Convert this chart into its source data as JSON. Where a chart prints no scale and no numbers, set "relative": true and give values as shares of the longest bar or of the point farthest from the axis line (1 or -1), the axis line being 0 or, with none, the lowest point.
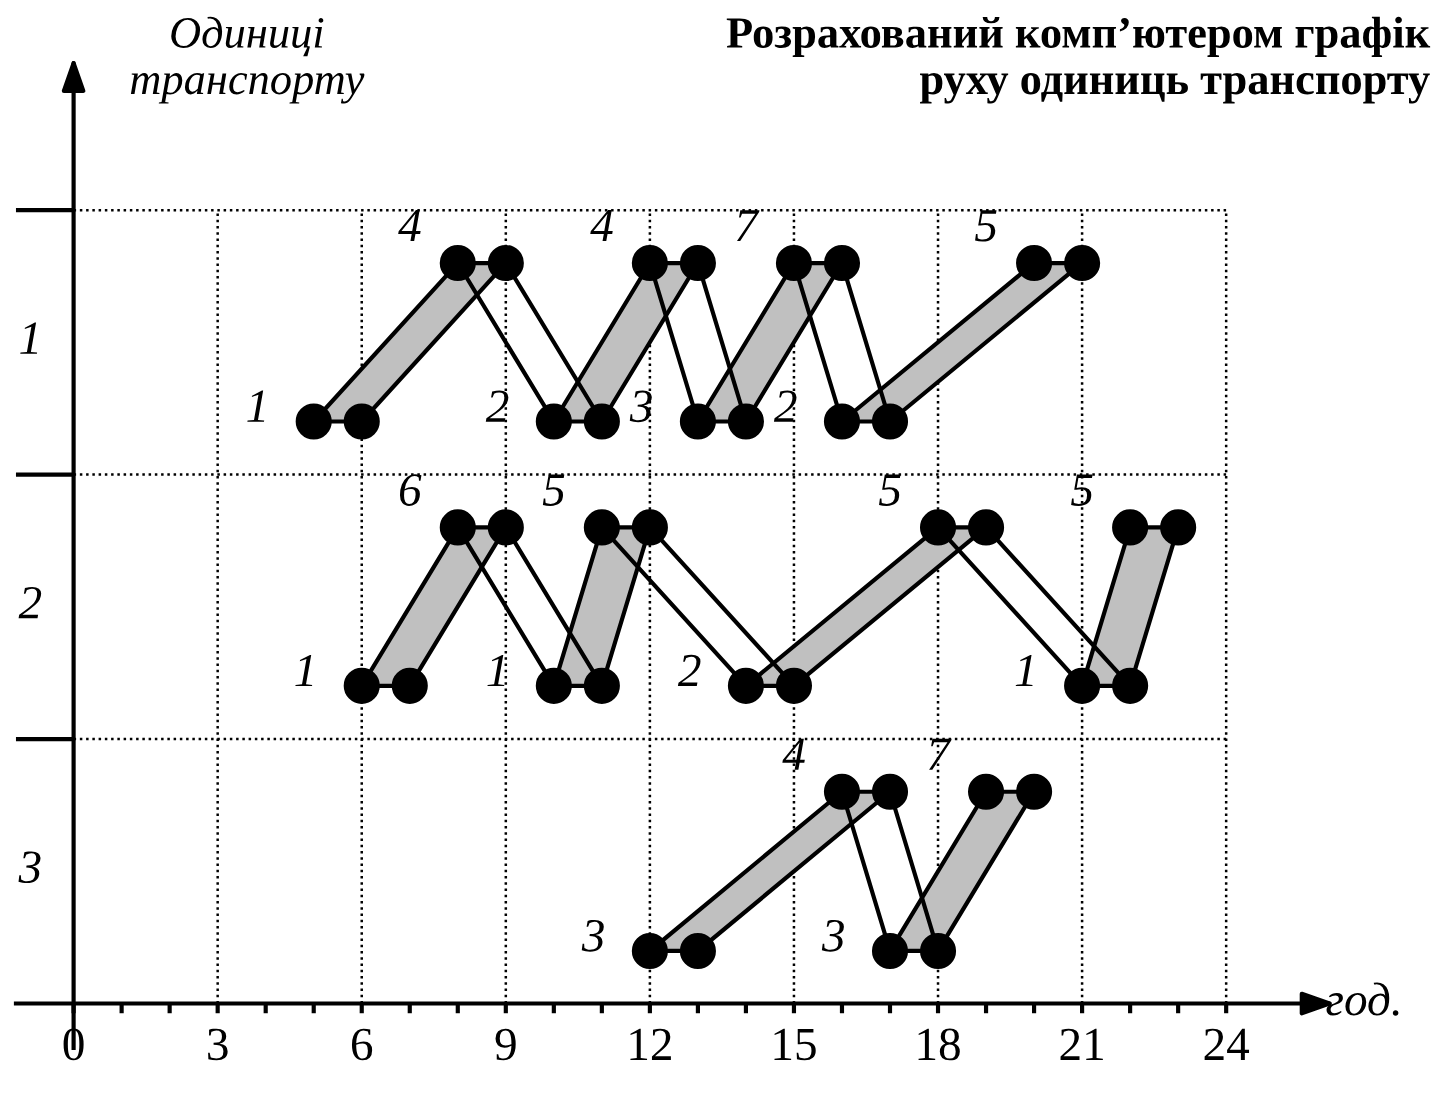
{
  "chart_data": {
    "type": "line",
    "title": "Розрахований комп’ютером графік\nруху одиниць транспорту",
    "xlabel": "год.",
    "ylabel": "Одиниці\nтранспорту",
    "relative": true,
    "xlim": [
      -1.2,
      25.8
    ],
    "xticks": [
      0,
      {
        "value": 1,
        "label": null
      },
      {
        "value": 2,
        "label": null
      },
      3,
      {
        "value": 4,
        "label": null
      },
      {
        "value": 5,
        "label": null
      },
      6,
      {
        "value": 7,
        "label": null
      },
      {
        "value": 8,
        "label": null
      },
      9,
      {
        "value": 10,
        "label": null
      },
      {
        "value": 11,
        "label": null
      },
      12,
      {
        "value": 13,
        "label": null
      },
      {
        "value": 14,
        "label": null
      },
      15,
      {
        "value": 16,
        "label": null
      },
      {
        "value": 17,
        "label": null
      },
      18,
      {
        "value": 19,
        "label": null
      },
      {
        "value": 20,
        "label": null
      },
      21,
      {
        "value": 22,
        "label": null
      },
      {
        "value": 23,
        "label": null
      },
      24
    ],
    "grid": true,
    "marker": "circle",
    "line_style": "solid",
    "series": [
      {
        "color": "#000000",
        "x": [
          5,
          8,
          10,
          12,
          13,
          15,
          16,
          20
        ],
        "values": [
          0.786,
          1,
          0.786,
          1,
          0.786,
          1,
          0.786,
          1
        ]
      },
      {
        "color": "#000000",
        "x": [
          6,
          9,
          11,
          13,
          14,
          16,
          17,
          21
        ],
        "values": [
          0.786,
          1,
          0.786,
          1,
          0.786,
          1,
          0.786,
          1
        ]
      },
      {
        "color": "#000000",
        "x": [
          6,
          8,
          10,
          11,
          14,
          18,
          21,
          22
        ],
        "values": [
          0.429,
          0.643,
          0.429,
          0.643,
          0.429,
          0.643,
          0.429,
          0.643
        ]
      },
      {
        "color": "#000000",
        "x": [
          7,
          9,
          11,
          12,
          15,
          19,
          22,
          23
        ],
        "values": [
          0.429,
          0.643,
          0.429,
          0.643,
          0.429,
          0.643,
          0.429,
          0.643
        ]
      },
      {
        "color": "#000000",
        "x": [
          12,
          16,
          17,
          19
        ],
        "values": [
          0.071,
          0.286,
          0.071,
          0.286
        ]
      },
      {
        "color": "#000000",
        "x": [
          13,
          17,
          18,
          20
        ],
        "values": [
          0.071,
          0.286,
          0.071,
          0.286
        ]
      }
    ],
    "annotations": [
      "1",
      "2",
      "3",
      {
        "text": "1",
        "x": 5,
        "y": 0.786
      },
      {
        "text": "4",
        "x": 8,
        "y": 1
      },
      {
        "text": "2",
        "x": 10,
        "y": 0.786
      },
      {
        "text": "4",
        "x": 12,
        "y": 1
      },
      {
        "text": "3",
        "x": 13,
        "y": 0.786
      },
      {
        "text": "7",
        "x": 15,
        "y": 1
      },
      {
        "text": "2",
        "x": 16,
        "y": 0.786
      },
      {
        "text": "5",
        "x": 20,
        "y": 1
      },
      {
        "text": "1",
        "x": 6,
        "y": 0.429
      },
      {
        "text": "6",
        "x": 8,
        "y": 0.643
      },
      {
        "text": "1",
        "x": 10,
        "y": 0.429
      },
      {
        "text": "5",
        "x": 11,
        "y": 0.643
      },
      {
        "text": "2",
        "x": 14,
        "y": 0.429
      },
      {
        "text": "5",
        "x": 18,
        "y": 0.643
      },
      {
        "text": "1",
        "x": 21,
        "y": 0.429
      },
      {
        "text": "5",
        "x": 22,
        "y": 0.643
      },
      {
        "text": "3",
        "x": 12,
        "y": 0.071
      },
      {
        "text": "4",
        "x": 16,
        "y": 0.286
      },
      {
        "text": "3",
        "x": 17,
        "y": 0.071
      },
      {
        "text": "7",
        "x": 19,
        "y": 0.286
      }
    ]
  }
}
